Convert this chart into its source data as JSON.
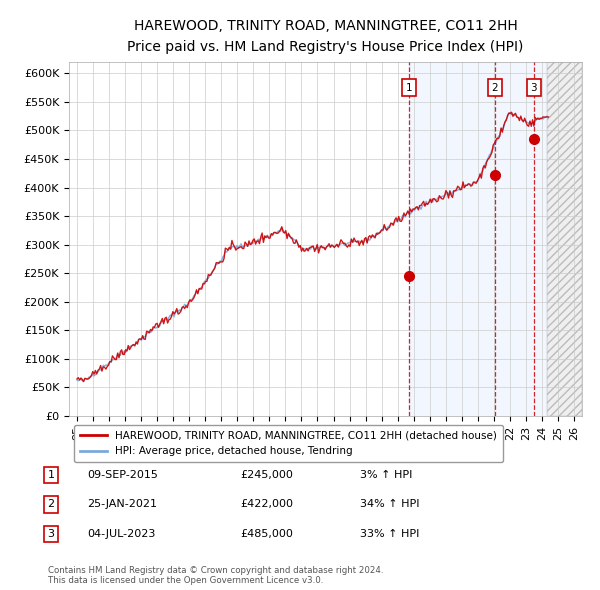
{
  "title": "HAREWOOD, TRINITY ROAD, MANNINGTREE, CO11 2HH",
  "subtitle": "Price paid vs. HM Land Registry's House Price Index (HPI)",
  "ylim": [
    0,
    620000
  ],
  "yticks": [
    0,
    50000,
    100000,
    150000,
    200000,
    250000,
    300000,
    350000,
    400000,
    450000,
    500000,
    550000,
    600000
  ],
  "ytick_labels": [
    "£0",
    "£50K",
    "£100K",
    "£150K",
    "£200K",
    "£250K",
    "£300K",
    "£350K",
    "£400K",
    "£450K",
    "£500K",
    "£550K",
    "£600K"
  ],
  "xlim_start": 1994.5,
  "xlim_end": 2026.5,
  "xtick_years": [
    1995,
    1996,
    1997,
    1998,
    1999,
    2000,
    2001,
    2002,
    2003,
    2004,
    2005,
    2006,
    2007,
    2008,
    2009,
    2010,
    2011,
    2012,
    2013,
    2014,
    2015,
    2016,
    2017,
    2018,
    2019,
    2020,
    2021,
    2022,
    2023,
    2024,
    2025,
    2026
  ],
  "hpi_color": "#7aaadd",
  "price_color": "#cc0000",
  "sale_marker_color": "#cc0000",
  "dashed_line_color": "#cc0000",
  "shaded_region_color": "#cce0ff",
  "sale_points": [
    {
      "date_num": 2015.69,
      "price": 245000,
      "label": "1"
    },
    {
      "date_num": 2021.07,
      "price": 422000,
      "label": "2"
    },
    {
      "date_num": 2023.5,
      "price": 485000,
      "label": "3"
    }
  ],
  "hatch_start": 2024.33,
  "shade_start": 2015.69,
  "legend_price_label": "HAREWOOD, TRINITY ROAD, MANNINGTREE, CO11 2HH (detached house)",
  "legend_hpi_label": "HPI: Average price, detached house, Tendring",
  "table_rows": [
    {
      "num": "1",
      "date": "09-SEP-2015",
      "price": "£245,000",
      "hpi": "3% ↑ HPI"
    },
    {
      "num": "2",
      "date": "25-JAN-2021",
      "price": "£422,000",
      "hpi": "34% ↑ HPI"
    },
    {
      "num": "3",
      "date": "04-JUL-2023",
      "price": "£485,000",
      "hpi": "33% ↑ HPI"
    }
  ],
  "footnote": "Contains HM Land Registry data © Crown copyright and database right 2024.\nThis data is licensed under the Open Government Licence v3.0.",
  "bg_color": "#ffffff",
  "grid_color": "#cccccc"
}
